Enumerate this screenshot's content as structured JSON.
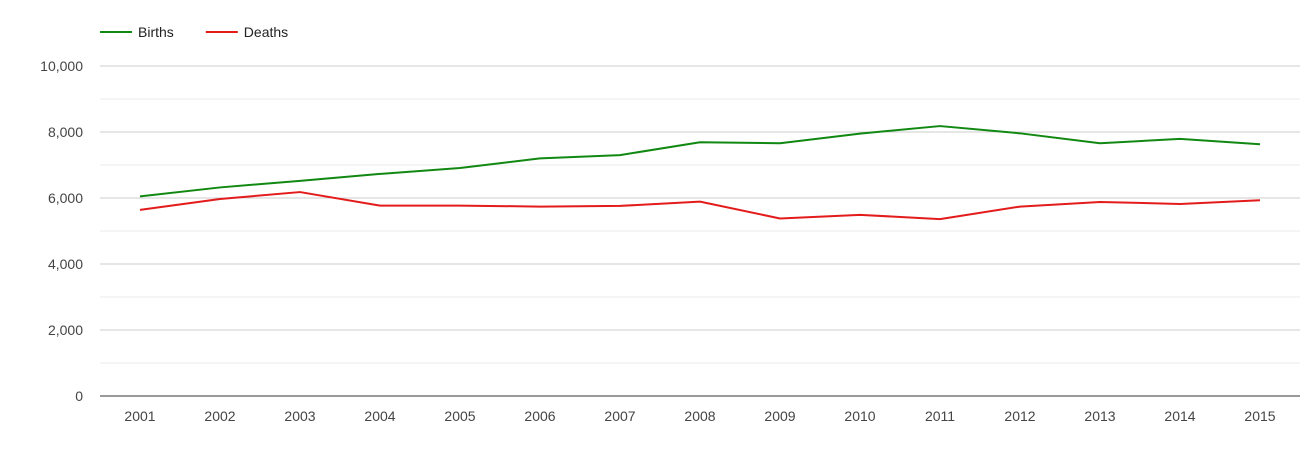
{
  "chart_data": {
    "type": "line",
    "title": "",
    "xlabel": "",
    "ylabel": "",
    "categories": [
      "2001",
      "2002",
      "2003",
      "2004",
      "2005",
      "2006",
      "2007",
      "2008",
      "2009",
      "2010",
      "2011",
      "2012",
      "2013",
      "2014",
      "2015"
    ],
    "ylim": [
      0,
      10000
    ],
    "y_ticks": [
      "0",
      "2,000",
      "4,000",
      "6,000",
      "8,000",
      "10,000"
    ],
    "y_tick_values": [
      0,
      2000,
      4000,
      6000,
      8000,
      10000
    ],
    "grid": true,
    "minor_grid": true,
    "legend_position": "top-left",
    "series": [
      {
        "name": "Births",
        "color": "#118811",
        "values": [
          6050,
          6320,
          6520,
          6730,
          6910,
          7200,
          7300,
          7690,
          7660,
          7950,
          8180,
          7960,
          7660,
          7790,
          7630
        ]
      },
      {
        "name": "Deaths",
        "color": "#e31b1b",
        "values": [
          5640,
          5970,
          6180,
          5770,
          5770,
          5740,
          5760,
          5890,
          5380,
          5490,
          5360,
          5740,
          5880,
          5820,
          5930
        ]
      }
    ]
  }
}
